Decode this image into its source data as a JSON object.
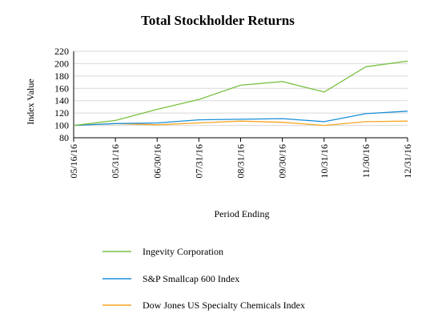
{
  "chart_data": {
    "type": "line",
    "title": "Total Stockholder Returns",
    "xlabel": "Period Ending",
    "ylabel": "Index Value",
    "categories": [
      "05/16/16",
      "05/31/16",
      "06/30/16",
      "07/31/16",
      "08/31/16",
      "09/30/16",
      "10/31/16",
      "11/30/16",
      "12/31/16"
    ],
    "ylim": [
      80,
      220
    ],
    "yticks": [
      80,
      100,
      120,
      140,
      160,
      180,
      200,
      220
    ],
    "grid": true,
    "legend_position": "bottom",
    "series": [
      {
        "name": "Ingevity Corporation",
        "color": "#7ac143",
        "values": [
          100,
          108,
          126,
          142,
          165,
          171,
          154,
          195,
          204
        ]
      },
      {
        "name": "S&P Smallcap 600 Index",
        "color": "#1b8fd8",
        "values": [
          100,
          103,
          104,
          109,
          110,
          111,
          106,
          119,
          123
        ]
      },
      {
        "name": "Dow Jones US Specialty Chemicals Index",
        "color": "#f5a623",
        "values": [
          100,
          103,
          101,
          104,
          107,
          105,
          100,
          106,
          107
        ]
      }
    ]
  }
}
